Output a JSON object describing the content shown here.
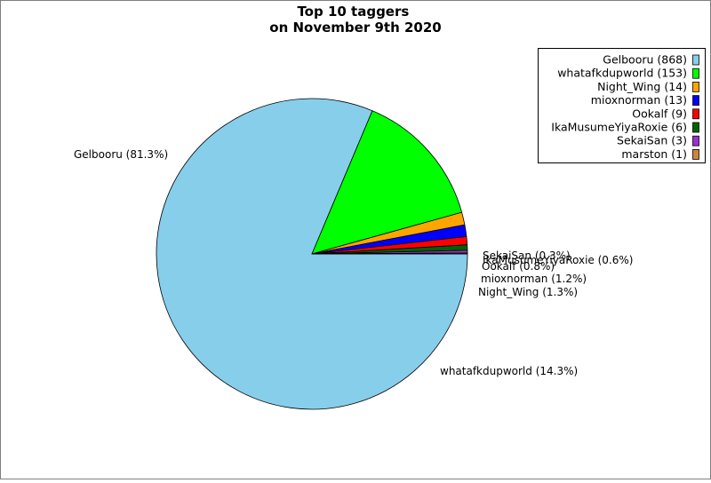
{
  "chart_data": {
    "type": "pie",
    "title": "Top 10 taggers\non November 9th 2020",
    "slices": [
      {
        "name": "Gelbooru",
        "count": 868,
        "percent": 81.3,
        "color": "#87ceeb",
        "legend": "Gelbooru (868)",
        "label": "Gelbooru (81.3%)"
      },
      {
        "name": "whatafkdupworld",
        "count": 153,
        "percent": 14.3,
        "color": "#00ff00",
        "legend": "whatafkdupworld (153)",
        "label": "whatafkdupworld (14.3%)"
      },
      {
        "name": "Night_Wing",
        "count": 14,
        "percent": 1.3,
        "color": "#ffa500",
        "legend": "Night_Wing (14)",
        "label": "Night_Wing (1.3%)"
      },
      {
        "name": "mioxnorman",
        "count": 13,
        "percent": 1.2,
        "color": "#0000ff",
        "legend": "mioxnorman (13)",
        "label": "mioxnorman (1.2%)"
      },
      {
        "name": "Ookalf",
        "count": 9,
        "percent": 0.8,
        "color": "#ff0000",
        "legend": "Ookalf (9)",
        "label": "Ookalf (0.8%)"
      },
      {
        "name": "IkaMusumeYiyaRoxie",
        "count": 6,
        "percent": 0.6,
        "color": "#006400",
        "legend": "IkaMusumeYiyaRoxie (6)",
        "label": "IkaMusumeYiyaRoxie (0.6%)"
      },
      {
        "name": "SekaiSan",
        "count": 3,
        "percent": 0.3,
        "color": "#9932cc",
        "legend": "SekaiSan (3)",
        "label": "SekaiSan (0.3%)"
      },
      {
        "name": "marston",
        "count": 1,
        "percent": 0.1,
        "color": "#cd853f",
        "legend": "marston (1)",
        "label": ""
      }
    ],
    "legend_position": "top-right",
    "start_angle": "0 degrees (3 o'clock)",
    "direction": "clockwise"
  }
}
